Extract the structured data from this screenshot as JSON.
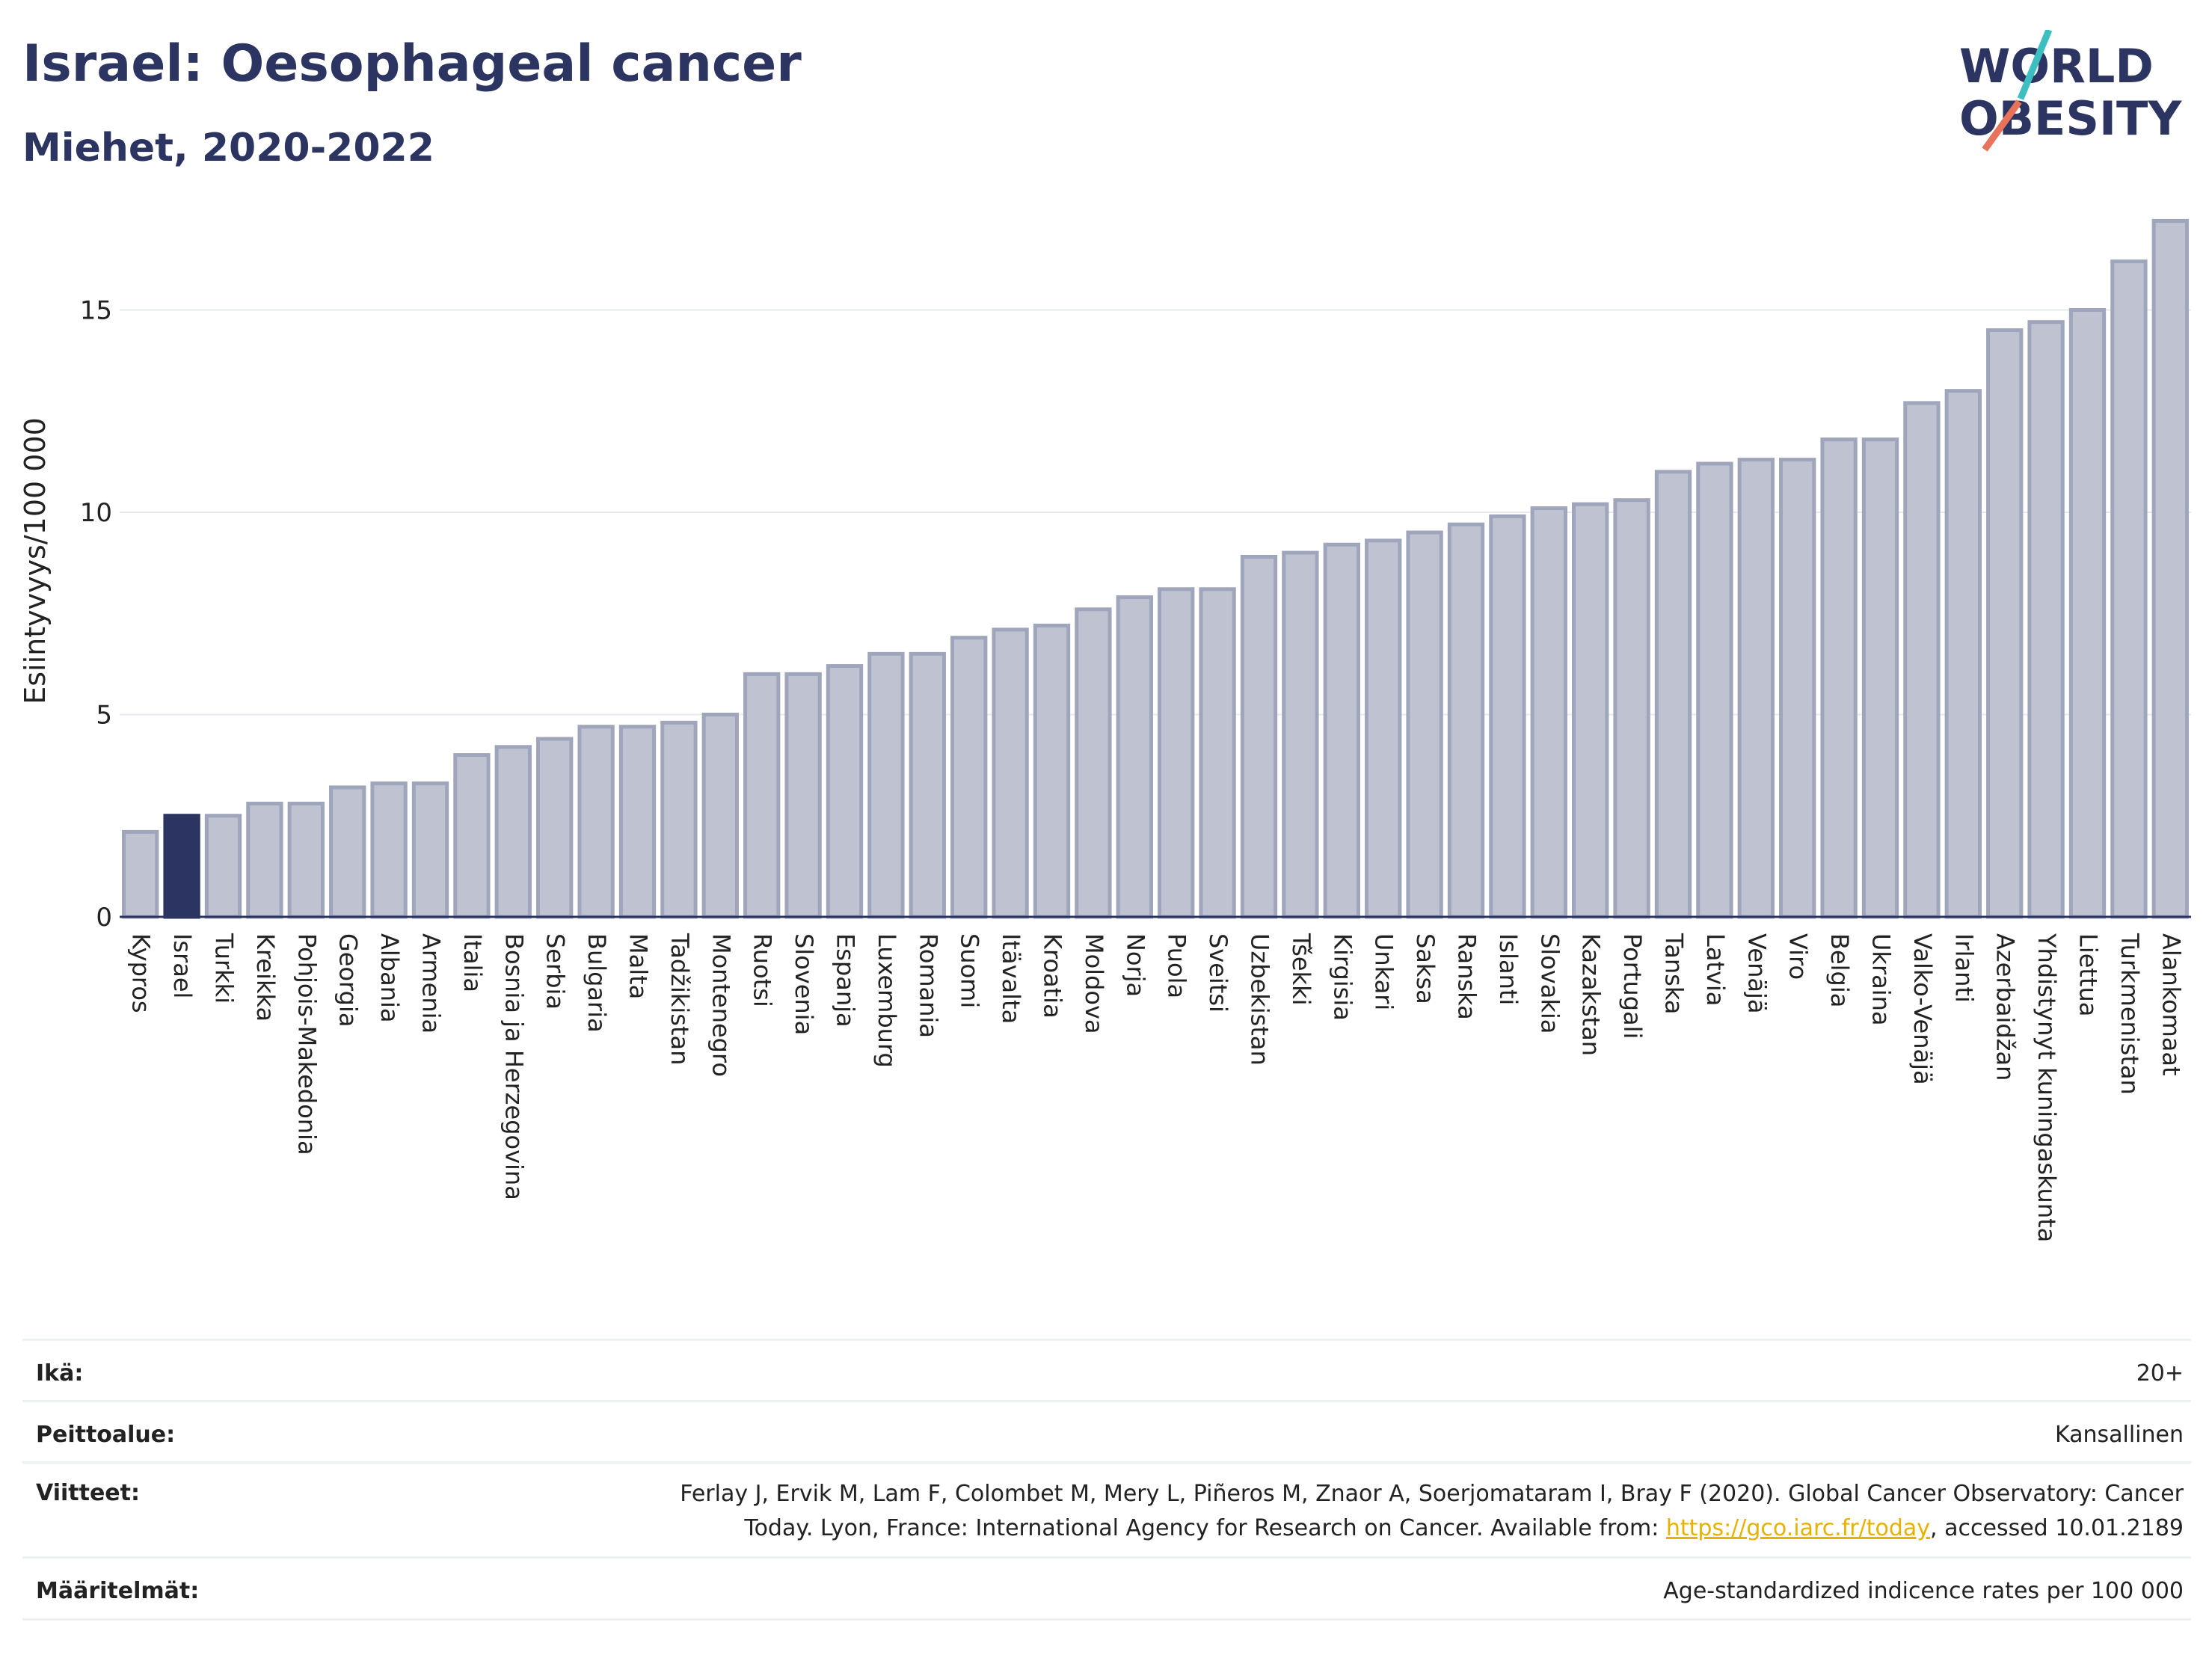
{
  "header": {
    "title": "Israel: Oesophageal cancer",
    "subtitle": "Miehet, 2020-2022"
  },
  "logo": {
    "line1": "WORLD",
    "line2": "OBESITY",
    "slash_colors": [
      "#3dbfc2",
      "#e8735a"
    ],
    "text_color": "#2c3561"
  },
  "colors": {
    "highlight": "#2c3561",
    "bar": "#bfc3d1",
    "bar_border": "#9fa5bb",
    "grid": "#e6e9ee"
  },
  "chart_data": {
    "type": "bar",
    "title": "Israel: Oesophageal cancer",
    "subtitle": "Miehet, 2020-2022",
    "ylabel": "Esiintyvyys/100 000",
    "xlabel": "",
    "ylim": [
      0,
      17.3
    ],
    "yticks": [
      0,
      5,
      10,
      15
    ],
    "grid": true,
    "highlight": "Israel",
    "categories": [
      "Kypros",
      "Israel",
      "Turkki",
      "Kreikka",
      "Pohjois-Makedonia",
      "Georgia",
      "Albania",
      "Armenia",
      "Italia",
      "Bosnia ja Herzegovina",
      "Serbia",
      "Bulgaria",
      "Malta",
      "Tadžikistan",
      "Montenegro",
      "Ruotsi",
      "Slovenia",
      "Espanja",
      "Luxemburg",
      "Romania",
      "Suomi",
      "Itävalta",
      "Kroatia",
      "Moldova",
      "Norja",
      "Puola",
      "Sveitsi",
      "Uzbekistan",
      "Tšekki",
      "Kirgisia",
      "Unkari",
      "Saksa",
      "Ranska",
      "Islanti",
      "Slovakia",
      "Kazakstan",
      "Portugali",
      "Tanska",
      "Latvia",
      "Venäjä",
      "Viro",
      "Belgia",
      "Ukraina",
      "Valko-Venäjä",
      "Irlanti",
      "Azerbaidžan",
      "Yhdistynyt kuningaskunta",
      "Liettua",
      "Turkmenistan",
      "Alankomaat"
    ],
    "values": [
      2.1,
      2.5,
      2.5,
      2.8,
      2.8,
      3.2,
      3.3,
      3.3,
      4.0,
      4.2,
      4.4,
      4.7,
      4.7,
      4.8,
      5.0,
      6.0,
      6.0,
      6.2,
      6.5,
      6.5,
      6.9,
      7.1,
      7.2,
      7.6,
      7.9,
      8.1,
      8.1,
      8.9,
      9.0,
      9.2,
      9.3,
      9.5,
      9.7,
      9.9,
      10.1,
      10.2,
      10.3,
      11.0,
      11.2,
      11.3,
      11.3,
      11.8,
      11.8,
      12.7,
      13.0,
      14.5,
      14.7,
      15.0,
      16.2,
      17.2
    ]
  },
  "info": {
    "age_label": "Ikä:",
    "age_value": "20+",
    "coverage_label": "Peittoalue:",
    "coverage_value": "Kansallinen",
    "refs_label": "Viitteet:",
    "refs_line1": "Ferlay J, Ervik M, Lam F, Colombet M, Mery L, Piñeros M, Znaor A, Soerjomataram I, Bray F (2020). Global Cancer Observatory: Cancer",
    "refs_line2_pre": "Today. Lyon, France: International Agency for Research on Cancer. Available from: ",
    "refs_link": "https://gco.iarc.fr/today",
    "refs_line2_post": ", accessed 10.01.2189",
    "defs_label": "Määritelmät:",
    "defs_value": "Age-standardized indicence rates per 100 000"
  }
}
